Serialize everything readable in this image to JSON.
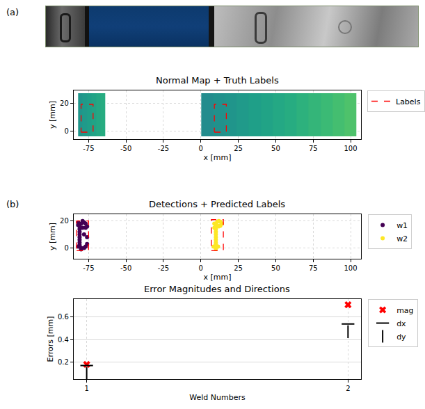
{
  "panel_labels": [
    "(a)",
    "(b)"
  ],
  "chart_data": [
    {
      "type": "heatmap",
      "title": "Normal Map + Truth Labels",
      "x_label": "x [mm]",
      "y_label": "y [mm]",
      "heatmap": {
        "x": [
          -82,
          -79,
          -76,
          -73,
          -70,
          -67,
          -64,
          0,
          8,
          16,
          24,
          32,
          40,
          48,
          56,
          64,
          72,
          80,
          88,
          96,
          104
        ],
        "y": [
          -4,
          27
        ],
        "z": [
          [
            0.52,
            0.54,
            0.56,
            0.58,
            0.6,
            0.62,
            null,
            0.48,
            0.5,
            0.52,
            0.54,
            0.56,
            0.58,
            0.6,
            0.62,
            0.64,
            0.66,
            0.68,
            0.7,
            0.72
          ]
        ],
        "zlim": [
          0,
          1
        ]
      },
      "series": [
        {
          "name": "Labels",
          "type": "rectangles",
          "color": "#ff0000",
          "line_style": "dashed",
          "rects": [
            {
              "x": [
                -80,
                -72
              ],
              "y": [
                -1,
                19
              ]
            },
            {
              "x": [
                9,
                17
              ],
              "y": [
                -1,
                19
              ]
            }
          ]
        }
      ],
      "xlim": [
        -85,
        107
      ],
      "xticks": [
        -75,
        -50,
        -25,
        0,
        25,
        50,
        75,
        100
      ],
      "ylim": [
        -6,
        29
      ],
      "yticks": [
        0,
        20
      ],
      "grid": true,
      "legend": "right"
    },
    {
      "type": "scatter",
      "title": "Detections + Predicted Labels",
      "x_label": "x [mm]",
      "y_label": "y [mm]",
      "series": [
        {
          "name": "w1",
          "color": "#440154",
          "marker": "circle",
          "x": [
            -81,
            -81,
            -81,
            -81,
            -81,
            -81,
            -81,
            -81,
            -80,
            -78,
            -77,
            -76,
            -77,
            -79,
            -82,
            -82,
            -80,
            -78,
            -77,
            -76,
            -79,
            -80,
            -82,
            -78,
            -76
          ],
          "y": [
            2,
            4,
            6,
            8,
            10,
            12,
            14,
            16,
            18,
            19,
            18,
            16,
            15,
            15,
            19,
            17,
            0,
            0,
            1,
            3,
            20,
            -1,
            1,
            10,
            8
          ]
        },
        {
          "name": "w2",
          "color": "#fde725",
          "marker": "circle",
          "x": [
            10,
            10,
            10,
            10,
            10,
            10,
            10,
            12,
            14,
            12,
            10,
            11,
            13,
            13,
            11,
            8.5,
            10,
            11.5,
            10,
            9,
            9
          ],
          "y": [
            4,
            6,
            8,
            10,
            12,
            14,
            16,
            20,
            18,
            16,
            18,
            19.5,
            19.5,
            16.5,
            16.5,
            1,
            2.5,
            1,
            -0.5,
            18,
            15
          ]
        },
        {
          "type": "rectangles",
          "color": "#ff0000",
          "line_style": "dashed",
          "rects": [
            {
              "x": [
                -83,
                -75
              ],
              "y": [
                -2,
                20
              ]
            },
            {
              "x": [
                7,
                15
              ],
              "y": [
                -2,
                21
              ]
            }
          ]
        }
      ],
      "xlim": [
        -85,
        107
      ],
      "xticks": [
        -75,
        -50,
        -25,
        0,
        25,
        50,
        75,
        100
      ],
      "ylim": [
        -8,
        25
      ],
      "yticks": [
        0,
        20
      ],
      "grid": true,
      "legend": "right"
    },
    {
      "type": "scatter",
      "title": "Error Magnitudes and Directions",
      "x_label": "Weld Numbers",
      "y_label": "Errors [mm]",
      "x": [
        1,
        2
      ],
      "series": [
        {
          "name": "mag",
          "color": "#ff0000",
          "marker": "x",
          "values": [
            0.18,
            0.71
          ]
        },
        {
          "name": "dx",
          "color": "#000000",
          "marker": "line-ew",
          "values": [
            0.17,
            0.54
          ]
        },
        {
          "name": "dy",
          "color": "#000000",
          "marker": "line-ns",
          "values": [
            0.1,
            0.47
          ]
        }
      ],
      "xlim": [
        0.95,
        2.05
      ],
      "xticks": [
        1,
        2
      ],
      "ylim": [
        0.05,
        0.76
      ],
      "yticks": [
        0.2,
        0.4,
        0.6
      ],
      "grid": true,
      "legend": "right"
    }
  ]
}
